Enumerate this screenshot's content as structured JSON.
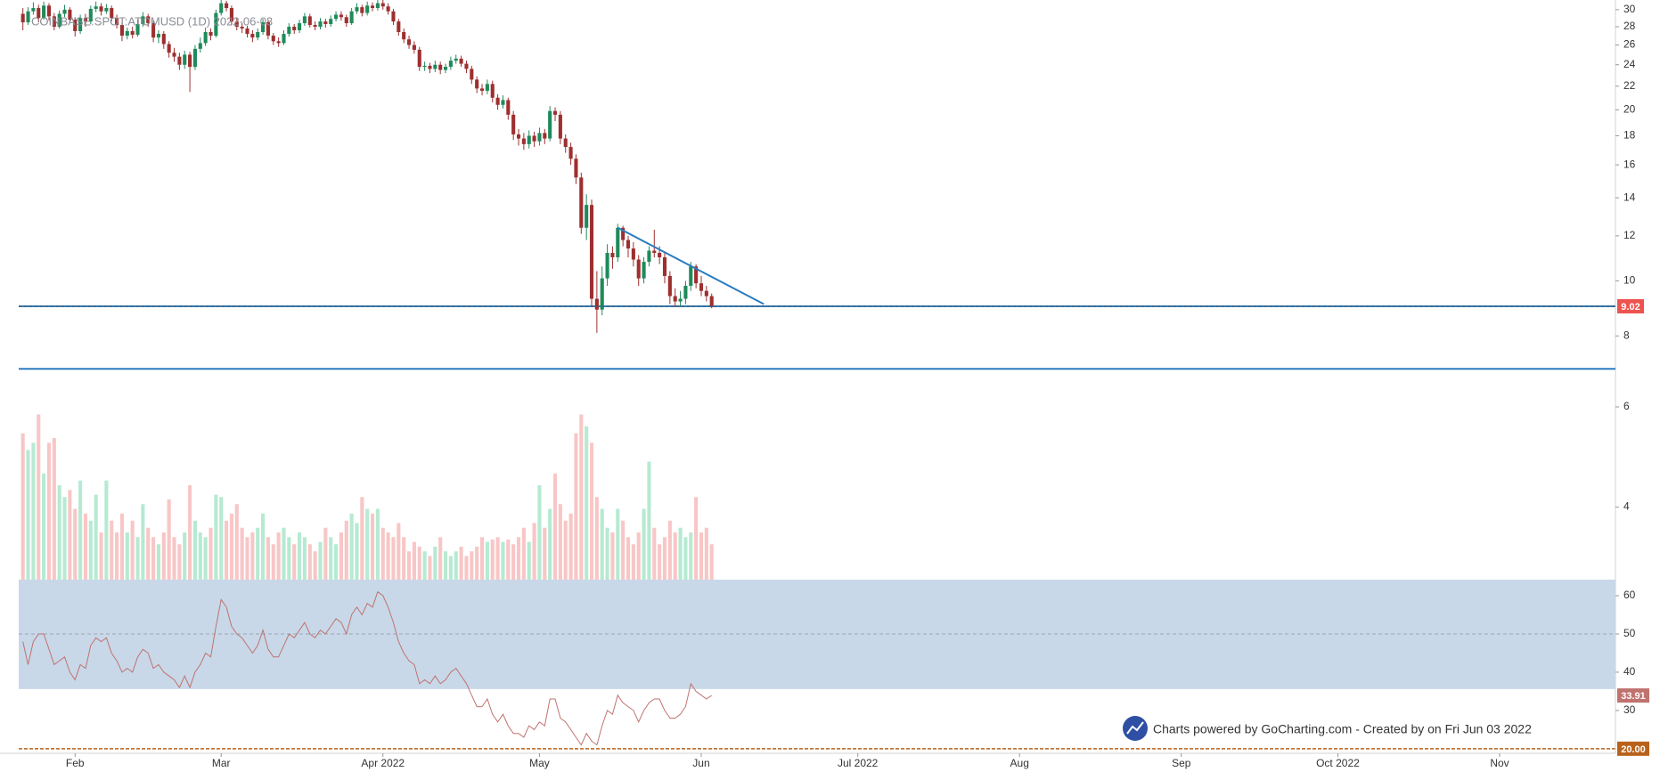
{
  "chart_data": {
    "type": "candlestick",
    "title": "COINBASE:SPOT:ATOMUSD (1D) 2022-06-03",
    "footer": "Charts powered by GoCharting.com - Created by  on Fri Jun 03 2022",
    "x": [
      22,
      23,
      24,
      25,
      26,
      27,
      28,
      29,
      30,
      31,
      32,
      33,
      34,
      35,
      36,
      37,
      38,
      39,
      40,
      41,
      42,
      43,
      44,
      45,
      46,
      47,
      48,
      49,
      50,
      51,
      52,
      53,
      54,
      55,
      56,
      57,
      58,
      59,
      60,
      61,
      62,
      63,
      64,
      65,
      66,
      67,
      68,
      69,
      70,
      71,
      72,
      73,
      74,
      75,
      76,
      77,
      78,
      79,
      80,
      81,
      82,
      83,
      84,
      85,
      86,
      87,
      88,
      89,
      90,
      91,
      92,
      93,
      94,
      95,
      96,
      97,
      98,
      99,
      100,
      101,
      102,
      103,
      104,
      105,
      106,
      107,
      108,
      109,
      110,
      111,
      112,
      113,
      114,
      115,
      116,
      117,
      118,
      119,
      120,
      121,
      122,
      123,
      124,
      125,
      126,
      127,
      128,
      129,
      130,
      131,
      132,
      133,
      134,
      135,
      136,
      137,
      138,
      139,
      140,
      141,
      142,
      143,
      144,
      145,
      146,
      147,
      148,
      149,
      150,
      151,
      152,
      153,
      154
    ],
    "open": [
      29.5,
      28.5,
      29.8,
      30.2,
      29.0,
      30.5,
      29.2,
      28.0,
      29.5,
      30.0,
      28.8,
      27.5,
      29.0,
      28.6,
      30.1,
      30.4,
      29.8,
      30.2,
      29.0,
      28.2,
      27.0,
      27.5,
      27.1,
      28.3,
      29.2,
      28.4,
      26.8,
      27.2,
      26.1,
      25.2,
      24.8,
      24.0,
      25.0,
      23.8,
      25.6,
      26.2,
      27.4,
      27.0,
      29.6,
      30.8,
      30.2,
      28.6,
      28.0,
      27.8,
      27.2,
      26.8,
      27.4,
      28.5,
      27.0,
      26.4,
      26.2,
      27.2,
      28.0,
      27.6,
      28.4,
      29.2,
      28.2,
      28.0,
      28.6,
      28.3,
      28.9,
      29.4,
      29.1,
      28.4,
      29.8,
      30.3,
      29.6,
      30.5,
      30.2,
      30.8,
      30.4,
      29.8,
      28.6,
      27.4,
      26.6,
      26.0,
      25.5,
      23.8,
      23.9,
      23.6,
      24.0,
      23.5,
      23.8,
      24.4,
      24.6,
      24.1,
      23.6,
      22.6,
      21.8,
      21.6,
      22.2,
      21.0,
      20.4,
      20.8,
      19.6,
      18.1,
      17.8,
      17.4,
      18.0,
      17.6,
      18.2,
      17.8,
      19.9,
      19.6,
      17.8,
      17.2,
      16.4,
      15.2,
      12.4,
      13.6,
      9.3,
      8.9,
      10.1,
      11.2,
      11.0,
      12.4,
      11.8,
      11.4,
      10.9,
      10.1,
      10.8,
      11.3,
      11.2,
      11.0,
      10.2,
      9.4,
      9.2,
      9.3,
      9.8,
      10.6,
      9.9,
      9.6,
      9.4
    ],
    "high": [
      30.2,
      30.3,
      30.9,
      30.6,
      31.0,
      30.8,
      29.6,
      29.9,
      30.6,
      30.3,
      29.1,
      29.4,
      29.5,
      30.5,
      31.0,
      30.8,
      30.7,
      30.5,
      29.4,
      28.5,
      27.9,
      28.0,
      28.8,
      29.7,
      29.5,
      28.7,
      27.6,
      27.5,
      26.4,
      25.7,
      25.2,
      25.4,
      25.3,
      26.0,
      26.8,
      27.9,
      27.8,
      30.0,
      31.2,
      31.1,
      30.5,
      29.0,
      28.4,
      28.1,
      27.6,
      27.8,
      28.9,
      28.8,
      27.3,
      26.8,
      27.6,
      28.4,
      28.3,
      28.8,
      29.6,
      29.5,
      28.6,
      29.0,
      28.9,
      29.3,
      29.8,
      29.8,
      29.4,
      30.2,
      30.8,
      30.6,
      31.0,
      30.9,
      31.2,
      31.2,
      30.8,
      30.1,
      28.9,
      27.8,
      27.0,
      26.4,
      25.8,
      24.3,
      24.2,
      24.4,
      24.3,
      24.1,
      24.8,
      25.0,
      24.9,
      24.4,
      23.9,
      22.9,
      22.2,
      22.6,
      22.5,
      21.3,
      21.2,
      21.0,
      19.9,
      18.5,
      18.2,
      18.4,
      18.3,
      18.6,
      18.5,
      20.3,
      20.2,
      19.9,
      18.1,
      17.5,
      16.7,
      15.5,
      14.2,
      13.9,
      10.4,
      10.6,
      11.6,
      11.5,
      12.6,
      12.5,
      12.0,
      11.7,
      11.1,
      11.0,
      11.5,
      12.3,
      11.5,
      11.2,
      10.4,
      9.7,
      9.6,
      10.0,
      10.8,
      10.7,
      10.2,
      9.8,
      9.5
    ],
    "low": [
      27.6,
      28.2,
      29.4,
      28.5,
      28.8,
      28.7,
      27.6,
      27.8,
      29.1,
      28.4,
      26.9,
      27.2,
      28.0,
      28.3,
      29.7,
      29.3,
      29.5,
      28.6,
      27.8,
      26.4,
      26.6,
      26.7,
      26.9,
      28.0,
      28.0,
      26.3,
      26.2,
      25.6,
      24.7,
      24.3,
      23.5,
      23.6,
      21.5,
      23.5,
      25.2,
      25.9,
      26.5,
      26.8,
      29.3,
      29.8,
      28.2,
      27.6,
      27.3,
      26.8,
      26.3,
      26.5,
      27.1,
      26.6,
      26.0,
      25.8,
      26.0,
      26.9,
      27.2,
      27.3,
      28.1,
      27.9,
      27.6,
      27.7,
      27.9,
      28.0,
      28.6,
      28.7,
      28.0,
      28.2,
      29.5,
      29.2,
      29.3,
      29.8,
      29.9,
      30.0,
      29.4,
      28.2,
      27.0,
      26.2,
      25.6,
      25.1,
      23.4,
      23.4,
      23.2,
      23.3,
      23.1,
      23.2,
      23.5,
      24.1,
      23.8,
      23.2,
      22.2,
      21.4,
      21.2,
      21.3,
      20.6,
      20.0,
      20.1,
      19.2,
      17.7,
      17.3,
      17.0,
      17.1,
      17.2,
      17.3,
      17.4,
      17.6,
      19.1,
      17.4,
      16.8,
      16.0,
      14.8,
      12.1,
      11.8,
      9.0,
      8.1,
      8.7,
      9.8,
      10.5,
      10.8,
      11.5,
      11.0,
      10.6,
      9.8,
      9.9,
      10.6,
      11.0,
      10.7,
      9.9,
      9.1,
      9.0,
      9.0,
      9.1,
      9.6,
      9.7,
      9.4,
      9.2,
      8.95
    ],
    "close": [
      28.5,
      29.8,
      30.2,
      29.0,
      30.5,
      29.2,
      28.0,
      29.5,
      30.0,
      28.8,
      27.5,
      29.0,
      28.6,
      30.1,
      30.4,
      29.8,
      30.2,
      29.0,
      28.2,
      27.0,
      27.5,
      27.1,
      28.3,
      29.2,
      28.4,
      26.8,
      27.2,
      26.1,
      25.2,
      24.8,
      24.0,
      25.0,
      23.8,
      25.6,
      26.2,
      27.4,
      27.0,
      29.6,
      30.8,
      30.2,
      28.6,
      28.0,
      27.8,
      27.2,
      26.8,
      27.4,
      28.5,
      27.0,
      26.4,
      26.2,
      27.2,
      28.0,
      27.6,
      28.4,
      29.2,
      28.2,
      28.0,
      28.6,
      28.3,
      28.9,
      29.4,
      29.1,
      28.4,
      29.8,
      30.3,
      29.6,
      30.5,
      30.2,
      30.8,
      30.4,
      29.8,
      28.6,
      27.4,
      26.6,
      26.0,
      25.5,
      23.8,
      23.9,
      23.6,
      24.0,
      23.5,
      23.8,
      24.4,
      24.6,
      24.1,
      23.6,
      22.6,
      21.8,
      21.6,
      22.2,
      21.0,
      20.4,
      20.8,
      19.6,
      18.1,
      17.8,
      17.4,
      18.0,
      17.6,
      18.2,
      17.8,
      19.9,
      19.6,
      17.8,
      17.2,
      16.4,
      15.2,
      12.4,
      13.6,
      9.3,
      8.9,
      10.1,
      11.2,
      11.0,
      12.4,
      11.8,
      11.4,
      10.9,
      10.1,
      10.8,
      11.3,
      11.2,
      11.0,
      10.2,
      9.4,
      9.2,
      9.3,
      9.8,
      10.6,
      9.9,
      9.6,
      9.4,
      9.02
    ],
    "volume": [
      62,
      55,
      58,
      70,
      45,
      58,
      60,
      40,
      35,
      38,
      30,
      42,
      28,
      25,
      36,
      20,
      42,
      25,
      20,
      28,
      20,
      25,
      18,
      32,
      22,
      18,
      15,
      20,
      34,
      18,
      15,
      20,
      40,
      25,
      20,
      18,
      22,
      36,
      35,
      25,
      28,
      32,
      22,
      18,
      20,
      22,
      28,
      18,
      15,
      20,
      22,
      18,
      15,
      20,
      18,
      15,
      12,
      16,
      22,
      18,
      15,
      20,
      25,
      28,
      24,
      35,
      30,
      28,
      30,
      22,
      20,
      18,
      24,
      18,
      12,
      16,
      14,
      12,
      10,
      14,
      18,
      12,
      10,
      12,
      14,
      10,
      12,
      14,
      18,
      16,
      17,
      18,
      16,
      17,
      15,
      18,
      22,
      16,
      24,
      40,
      22,
      30,
      45,
      32,
      25,
      28,
      62,
      70,
      65,
      58,
      35,
      30,
      22,
      20,
      30,
      25,
      18,
      15,
      20,
      30,
      50,
      22,
      15,
      18,
      25,
      20,
      22,
      18,
      20,
      35,
      20,
      22,
      15
    ],
    "up_color": "#1f8a5b",
    "down_color": "#9e2f2f",
    "volume_up_color": "#b6ead2",
    "volume_down_color": "#f8c6c6",
    "xlim": [
      21.2,
      327.2
    ],
    "xticks": [
      {
        "value": 32,
        "label": "Feb"
      },
      {
        "value": 60,
        "label": "Mar"
      },
      {
        "value": 91,
        "label": "Apr 2022"
      },
      {
        "value": 121,
        "label": "May"
      },
      {
        "value": 152,
        "label": "Jun"
      },
      {
        "value": 182,
        "label": "Jul 2022"
      },
      {
        "value": 213,
        "label": "Aug"
      },
      {
        "value": 244,
        "label": "Sep"
      },
      {
        "value": 274,
        "label": "Oct 2022"
      },
      {
        "value": 305,
        "label": "Nov"
      }
    ],
    "ylim": [
      2.98,
      31.2
    ],
    "log": true,
    "yticks": [
      30,
      28,
      26,
      24,
      22,
      20,
      18,
      16,
      14,
      12,
      10,
      8,
      6,
      4
    ],
    "hlines": [
      9.02,
      7
    ],
    "line_color": "#2a7bbf",
    "trendline": {
      "x": [
        136,
        164
      ],
      "values": [
        12.4,
        9.1
      ]
    },
    "rsi": {
      "values": [
        48,
        42,
        48,
        50,
        50,
        46,
        42,
        43,
        44,
        40,
        38,
        42,
        41,
        47,
        49,
        48,
        49,
        45,
        43,
        40,
        41,
        40,
        44,
        46,
        45,
        41,
        42,
        40,
        39,
        38,
        36,
        39,
        36,
        40,
        42,
        45,
        44,
        52,
        59,
        57,
        52,
        50,
        49,
        47,
        45,
        47,
        51,
        46,
        44,
        44,
        47,
        50,
        49,
        51,
        53,
        50,
        49,
        51,
        50,
        52,
        54,
        53,
        50,
        55,
        57,
        55,
        58,
        57,
        61,
        60,
        57,
        53,
        48,
        45,
        43,
        42,
        37,
        38,
        37,
        39,
        37,
        38,
        40,
        41,
        39,
        37,
        34,
        31,
        31,
        33,
        29,
        27,
        29,
        26,
        24,
        24,
        23,
        26,
        25,
        27,
        26,
        33,
        33,
        28,
        27,
        25,
        23,
        21,
        24,
        22,
        21,
        26,
        30,
        29,
        34,
        32,
        31,
        30,
        27,
        30,
        32,
        33,
        33,
        30,
        28,
        28,
        29,
        31,
        37,
        35,
        34,
        33,
        33.91
      ],
      "color": "#c0726f",
      "ylim": [
        18.8,
        64.2
      ],
      "yticks": [
        60,
        50,
        40,
        30
      ],
      "band": [
        35.6,
        70
      ],
      "band_color": "#c8d8e8",
      "midline": 50,
      "level": {
        "value": 20,
        "label": "20.00"
      },
      "level_color": "#b8621b"
    }
  }
}
